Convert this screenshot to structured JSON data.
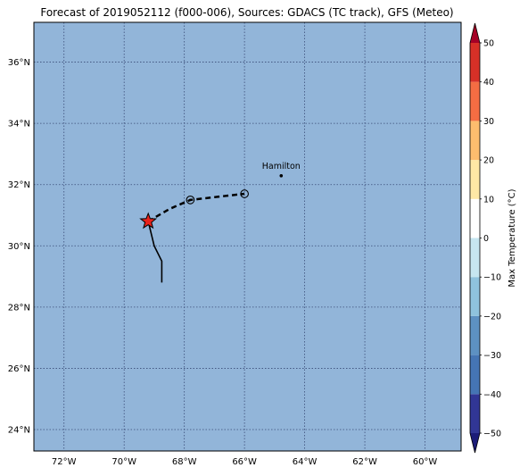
{
  "title": "Forecast of 2019052112 (f000-006), Sources: GDACS (TC track), GFS (Meteo)",
  "colors": {
    "ocean": "#92b5d9",
    "grid": "#2b3a67",
    "track": "#000000",
    "star_fill": "#e8231c"
  },
  "map": {
    "lon_range": [
      -73.0,
      -58.8
    ],
    "lat_range": [
      23.3,
      37.3
    ],
    "lon_ticks": [
      {
        "value": -72,
        "label": "72°W"
      },
      {
        "value": -70,
        "label": "70°W"
      },
      {
        "value": -68,
        "label": "68°W"
      },
      {
        "value": -66,
        "label": "66°W"
      },
      {
        "value": -64,
        "label": "64°W"
      },
      {
        "value": -62,
        "label": "62°W"
      },
      {
        "value": -60,
        "label": "60°W"
      }
    ],
    "lat_ticks": [
      {
        "value": 24,
        "label": "24°N"
      },
      {
        "value": 26,
        "label": "26°N"
      },
      {
        "value": 28,
        "label": "28°N"
      },
      {
        "value": 30,
        "label": "30°N"
      },
      {
        "value": 32,
        "label": "32°N"
      },
      {
        "value": 34,
        "label": "34°N"
      },
      {
        "value": 36,
        "label": "36°N"
      }
    ],
    "past_track": [
      {
        "lon": -68.75,
        "lat": 28.8
      },
      {
        "lon": -68.75,
        "lat": 29.5
      },
      {
        "lon": -69.0,
        "lat": 30.0
      },
      {
        "lon": -69.2,
        "lat": 30.8
      }
    ],
    "forecast_track": [
      {
        "lon": -69.2,
        "lat": 30.8
      },
      {
        "lon": -68.5,
        "lat": 31.2
      },
      {
        "lon": -67.8,
        "lat": 31.5
      },
      {
        "lon": -66.9,
        "lat": 31.6
      },
      {
        "lon": -66.0,
        "lat": 31.7
      }
    ],
    "current_position": {
      "lon": -69.2,
      "lat": 30.8
    },
    "forecast_points": [
      {
        "lon": -67.8,
        "lat": 31.5,
        "marker": "circle-dot"
      },
      {
        "lon": -66.0,
        "lat": 31.7,
        "marker": "circle"
      }
    ],
    "cities": [
      {
        "name": "Hamilton",
        "lon": -64.78,
        "lat": 32.29
      }
    ]
  },
  "colorbar": {
    "label": "Max Temperature (°C)",
    "vmin": -50,
    "vmax": 50,
    "bands": [
      {
        "from": -50,
        "to": -40,
        "color": "#313695"
      },
      {
        "from": -40,
        "to": -30,
        "color": "#4575b4"
      },
      {
        "from": -30,
        "to": -20,
        "color": "#5d91c2"
      },
      {
        "from": -20,
        "to": -10,
        "color": "#8fc3dd"
      },
      {
        "from": -10,
        "to": 0,
        "color": "#c6e6f0"
      },
      {
        "from": 0,
        "to": 10,
        "color": "#ffffff"
      },
      {
        "from": 10,
        "to": 20,
        "color": "#fee8a5"
      },
      {
        "from": 20,
        "to": 30,
        "color": "#fdbd6e"
      },
      {
        "from": 30,
        "to": 40,
        "color": "#f46d43"
      },
      {
        "from": 40,
        "to": 50,
        "color": "#d73027"
      }
    ],
    "under_color": "#1c1c78",
    "over_color": "#a50026",
    "ticks": [
      {
        "value": 50,
        "label": "50"
      },
      {
        "value": 40,
        "label": "40"
      },
      {
        "value": 30,
        "label": "30"
      },
      {
        "value": 20,
        "label": "20"
      },
      {
        "value": 10,
        "label": "10"
      },
      {
        "value": 0,
        "label": "0"
      },
      {
        "value": -10,
        "label": "−10"
      },
      {
        "value": -20,
        "label": "−20"
      },
      {
        "value": -30,
        "label": "−30"
      },
      {
        "value": -40,
        "label": "−40"
      },
      {
        "value": -50,
        "label": "−50"
      }
    ]
  }
}
